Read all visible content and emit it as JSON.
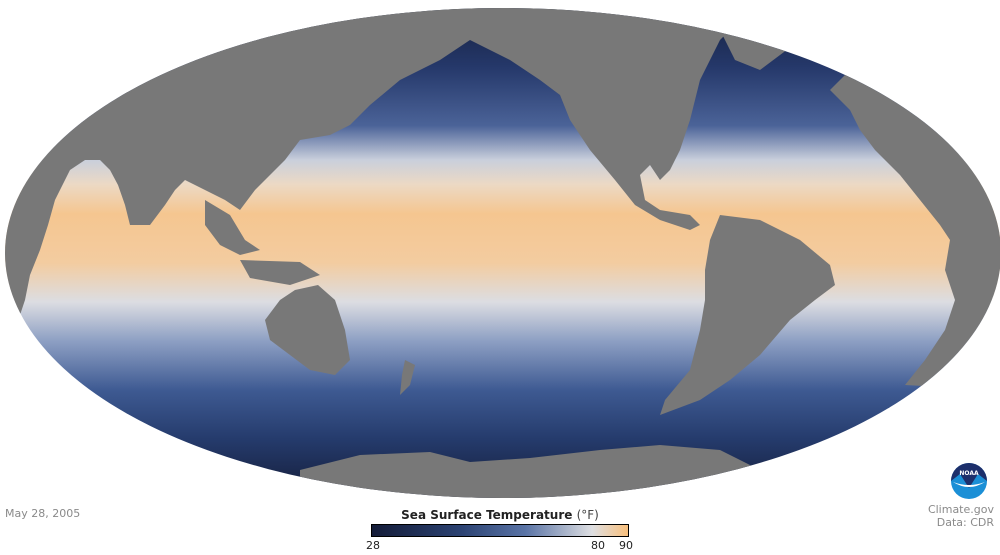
{
  "date": "May 28, 2005",
  "legend": {
    "title": "Sea Surface Temperature",
    "unit": "(°F)",
    "ticks": [
      "28",
      "80",
      "90"
    ],
    "min": 28,
    "max": 90,
    "colors": [
      "#141c38",
      "#2c4373",
      "#5a74a6",
      "#dedfe2",
      "#f9c07d"
    ]
  },
  "credit": {
    "source": "Climate.gov",
    "data": "Data: CDR",
    "logo_text": "NOAA"
  },
  "colors": {
    "land": "#787878",
    "background": "#ffffff"
  }
}
